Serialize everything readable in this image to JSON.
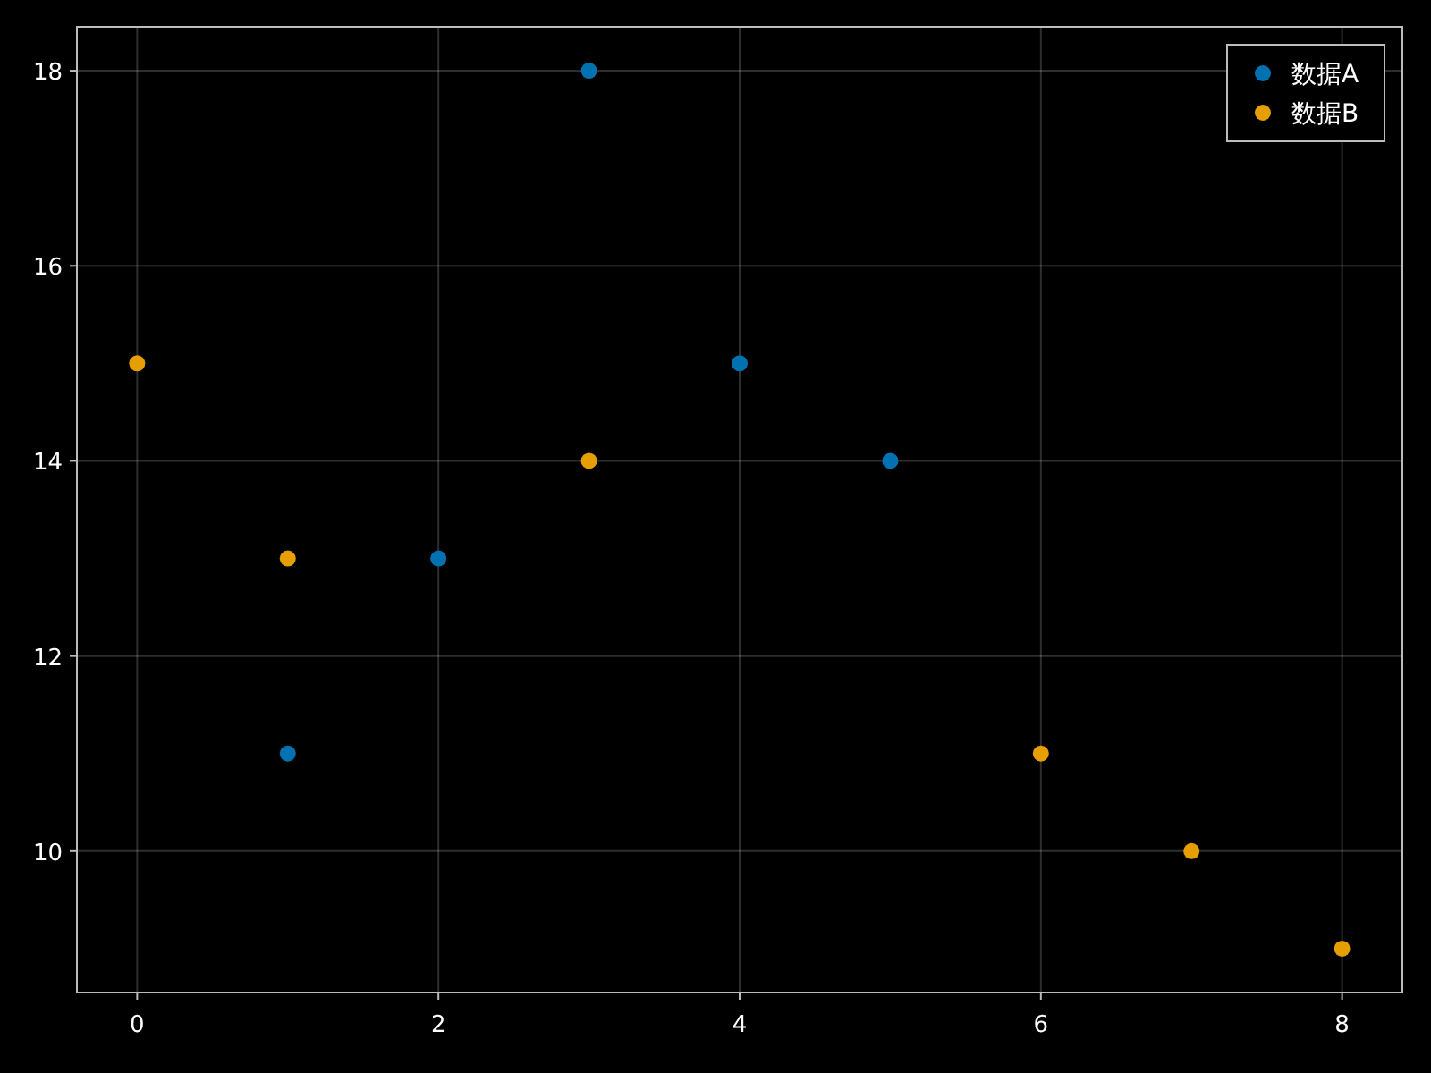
{
  "chart_data": {
    "type": "scatter",
    "series": [
      {
        "name": "数据A",
        "color": "#0072b2",
        "x": [
          1,
          2,
          3,
          4,
          5
        ],
        "values": [
          11,
          13,
          18,
          15,
          14
        ]
      },
      {
        "name": "数据B",
        "color": "#e69f00",
        "x": [
          0,
          1,
          3,
          6,
          7,
          8
        ],
        "values": [
          15,
          13,
          14,
          11,
          10,
          9
        ]
      }
    ],
    "xlim": [
      -0.4,
      8.4
    ],
    "xticks": [
      0,
      2,
      4,
      6,
      8
    ],
    "ylim": [
      8.55,
      18.45
    ],
    "yticks": [
      10,
      12,
      14,
      16,
      18
    ],
    "grid": true,
    "legend": "top right",
    "marker": "circle"
  }
}
